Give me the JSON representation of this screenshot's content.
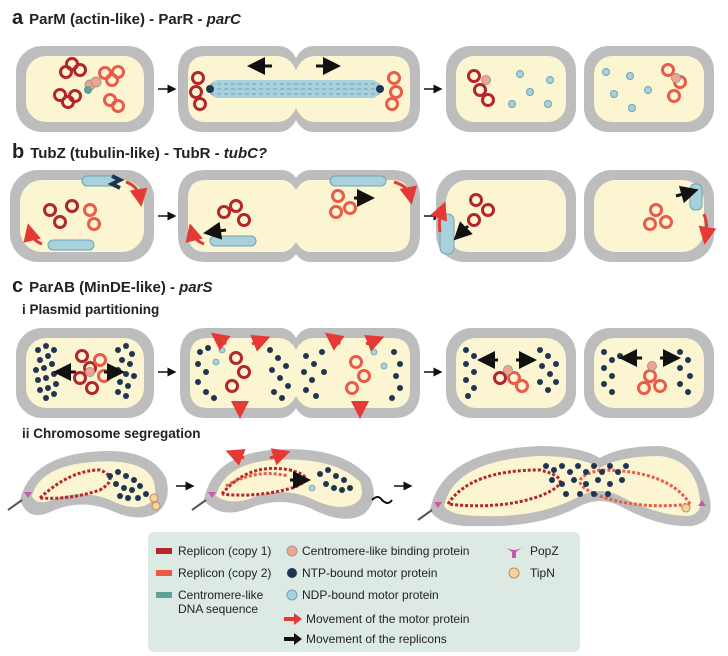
{
  "sections": {
    "a": {
      "letter": "a",
      "title": "ParM (actin-like) - ParR - ",
      "title_italic": "parC"
    },
    "b": {
      "letter": "b",
      "title": "TubZ (tubulin-like) - TubR - ",
      "title_italic": "tubC?"
    },
    "c": {
      "letter": "c",
      "title": "ParAB (MinDE-like) - ",
      "title_italic": "parS",
      "sub_i": "i  Plasmid partitioning",
      "sub_ii": "ii  Chromosome segregation"
    }
  },
  "legend": {
    "items": [
      {
        "label": "Replicon (copy 1)",
        "icon": "dark-red-bar",
        "color": "#b5252b"
      },
      {
        "label": "Replicon (copy 2)",
        "icon": "light-red-bar",
        "color": "#ec5a48"
      },
      {
        "label": "Centromere-like",
        "label2": "DNA sequence",
        "icon": "teal-bar",
        "color": "#5aa39a"
      },
      {
        "label": "Centromere-like binding protein",
        "icon": "pink-circle",
        "color": "#f2a58c"
      },
      {
        "label": "NTP-bound motor protein",
        "icon": "navy-circle",
        "color": "#1f3552"
      },
      {
        "label": "NDP-bound motor protein",
        "icon": "light-blue-circle",
        "color": "#a9d1dc"
      },
      {
        "label": "Movement of the motor protein",
        "icon": "red-arrow-icon",
        "color": "#e53935"
      },
      {
        "label": "Movement of the replicons",
        "icon": "black-arrow-icon",
        "color": "#111111"
      },
      {
        "label": "PopZ",
        "icon": "popz-icon",
        "color": "#c45aa8"
      },
      {
        "label": "TipN",
        "icon": "tipn-icon",
        "color": "#f6d39a"
      }
    ]
  },
  "colors": {
    "cell_wall": "#bdbdbd",
    "cytoplasm": "#fbf5d2",
    "legend_bg": "#dde9e3"
  }
}
